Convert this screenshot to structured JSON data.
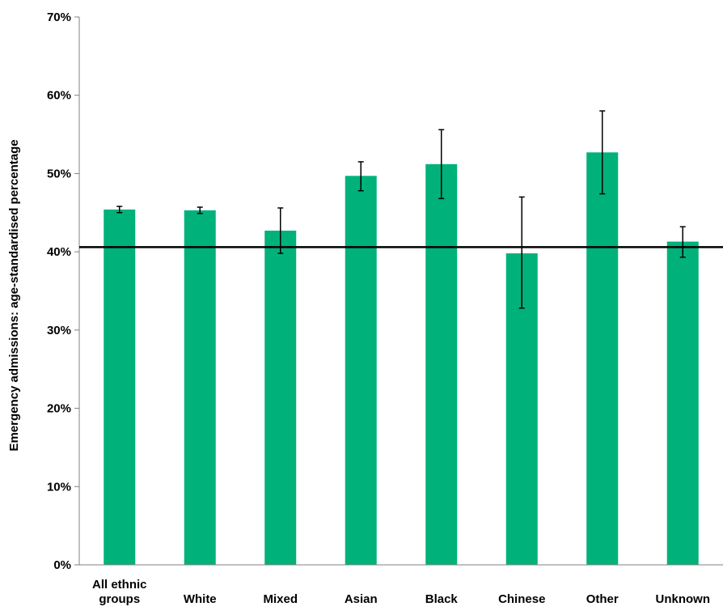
{
  "chart_data": {
    "type": "bar",
    "title": "",
    "xlabel": "",
    "ylabel": "Emergency admissions: age-standardised percentage",
    "ylim": [
      0,
      70
    ],
    "yticks": [
      "0%",
      "10%",
      "20%",
      "30%",
      "40%",
      "50%",
      "60%",
      "70%"
    ],
    "ytick_values": [
      0,
      10,
      20,
      30,
      40,
      50,
      60,
      70
    ],
    "categories": [
      [
        "All ethnic",
        "groups"
      ],
      [
        "White"
      ],
      [
        "Mixed"
      ],
      [
        "Asian"
      ],
      [
        "Black"
      ],
      [
        "Chinese"
      ],
      [
        "Other"
      ],
      [
        "Unknown"
      ]
    ],
    "values": [
      45.4,
      45.3,
      42.7,
      49.7,
      51.2,
      39.8,
      52.7,
      41.3
    ],
    "error_low": [
      45.0,
      44.9,
      39.8,
      47.8,
      46.8,
      32.8,
      47.4,
      39.3
    ],
    "error_high": [
      45.8,
      45.7,
      45.6,
      51.5,
      55.6,
      47.0,
      58.0,
      43.2
    ],
    "reference_line": 40.6,
    "bar_color": "#00b27a",
    "grid": false,
    "legend": "none"
  }
}
